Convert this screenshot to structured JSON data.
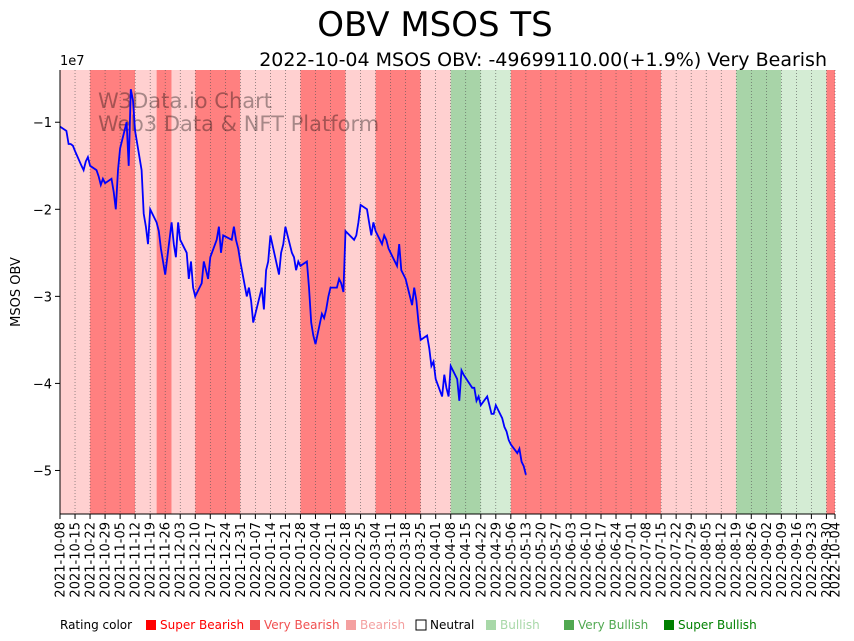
{
  "chart_data": {
    "type": "line",
    "title": "OBV MSOS TS",
    "subtitle": "2022-10-04 MSOS OBV: -49699110.00(+1.9%) Very Bearish",
    "ylabel": "MSOS OBV",
    "y_scale_label": "1e7",
    "ylim": [
      -5.5,
      -0.4
    ],
    "yticks": [
      -1,
      -2,
      -3,
      -4,
      -5
    ],
    "ytick_labels": [
      "−1",
      "−2",
      "−3",
      "−4",
      "−5"
    ],
    "x_start": "2021-10-08",
    "x_end": "2022-10-04",
    "xtick_labels": [
      "2021-10-08",
      "2021-10-15",
      "2021-10-22",
      "2021-10-29",
      "2021-11-05",
      "2021-11-12",
      "2021-11-19",
      "2021-11-26",
      "2021-12-03",
      "2021-12-10",
      "2021-12-17",
      "2021-12-24",
      "2021-12-31",
      "2022-01-07",
      "2022-01-14",
      "2022-01-21",
      "2022-01-28",
      "2022-02-04",
      "2022-02-11",
      "2022-02-18",
      "2022-02-25",
      "2022-03-04",
      "2022-03-11",
      "2022-03-18",
      "2022-03-25",
      "2022-04-01",
      "2022-04-08",
      "2022-04-15",
      "2022-04-22",
      "2022-04-29",
      "2022-05-06",
      "2022-05-13",
      "2022-05-20",
      "2022-05-27",
      "2022-06-03",
      "2022-06-10",
      "2022-06-17",
      "2022-06-24",
      "2022-07-01",
      "2022-07-08",
      "2022-07-15",
      "2022-07-22",
      "2022-07-29",
      "2022-08-05",
      "2022-08-12",
      "2022-08-19",
      "2022-08-26",
      "2022-09-02",
      "2022-09-09",
      "2022-09-16",
      "2022-09-23",
      "2022-09-30",
      "2022-10-04"
    ],
    "series": [
      {
        "name": "MSOS OBV (1e7)",
        "color": "#0000ff",
        "points": [
          [
            "2021-10-08",
            -1.05
          ],
          [
            "2021-10-11",
            -1.1
          ],
          [
            "2021-10-12",
            -1.25
          ],
          [
            "2021-10-13",
            -1.25
          ],
          [
            "2021-10-14",
            -1.27
          ],
          [
            "2021-10-15",
            -1.33
          ],
          [
            "2021-10-18",
            -1.5
          ],
          [
            "2021-10-19",
            -1.55
          ],
          [
            "2021-10-20",
            -1.45
          ],
          [
            "2021-10-21",
            -1.4
          ],
          [
            "2021-10-22",
            -1.5
          ],
          [
            "2021-10-25",
            -1.55
          ],
          [
            "2021-10-26",
            -1.62
          ],
          [
            "2021-10-27",
            -1.72
          ],
          [
            "2021-10-28",
            -1.65
          ],
          [
            "2021-10-29",
            -1.7
          ],
          [
            "2021-11-01",
            -1.65
          ],
          [
            "2021-11-02",
            -1.8
          ],
          [
            "2021-11-03",
            -2.0
          ],
          [
            "2021-11-04",
            -1.55
          ],
          [
            "2021-11-05",
            -1.3
          ],
          [
            "2021-11-08",
            -1.0
          ],
          [
            "2021-11-09",
            -1.5
          ],
          [
            "2021-11-10",
            -0.62
          ],
          [
            "2021-11-11",
            -0.75
          ],
          [
            "2021-11-12",
            -1.1
          ],
          [
            "2021-11-15",
            -1.55
          ],
          [
            "2021-11-16",
            -2.05
          ],
          [
            "2021-11-17",
            -2.2
          ],
          [
            "2021-11-18",
            -2.4
          ],
          [
            "2021-11-19",
            -2.0
          ],
          [
            "2021-11-22",
            -2.15
          ],
          [
            "2021-11-23",
            -2.25
          ],
          [
            "2021-11-24",
            -2.45
          ],
          [
            "2021-11-26",
            -2.75
          ],
          [
            "2021-11-29",
            -2.15
          ],
          [
            "2021-11-30",
            -2.4
          ],
          [
            "2021-12-01",
            -2.55
          ],
          [
            "2021-12-02",
            -2.15
          ],
          [
            "2021-12-03",
            -2.35
          ],
          [
            "2021-12-06",
            -2.5
          ],
          [
            "2021-12-07",
            -2.8
          ],
          [
            "2021-12-08",
            -2.6
          ],
          [
            "2021-12-09",
            -2.9
          ],
          [
            "2021-12-10",
            -3.0
          ],
          [
            "2021-12-13",
            -2.85
          ],
          [
            "2021-12-14",
            -2.6
          ],
          [
            "2021-12-15",
            -2.7
          ],
          [
            "2021-12-16",
            -2.8
          ],
          [
            "2021-12-17",
            -2.55
          ],
          [
            "2021-12-20",
            -2.35
          ],
          [
            "2021-12-21",
            -2.2
          ],
          [
            "2021-12-22",
            -2.5
          ],
          [
            "2021-12-23",
            -2.3
          ],
          [
            "2021-12-27",
            -2.35
          ],
          [
            "2021-12-28",
            -2.2
          ],
          [
            "2021-12-29",
            -2.35
          ],
          [
            "2021-12-30",
            -2.45
          ],
          [
            "2021-12-31",
            -2.6
          ],
          [
            "2022-01-03",
            -3.0
          ],
          [
            "2022-01-04",
            -2.9
          ],
          [
            "2022-01-05",
            -3.05
          ],
          [
            "2022-01-06",
            -3.3
          ],
          [
            "2022-01-07",
            -3.2
          ],
          [
            "2022-01-10",
            -2.9
          ],
          [
            "2022-01-11",
            -3.15
          ],
          [
            "2022-01-12",
            -2.7
          ],
          [
            "2022-01-13",
            -2.6
          ],
          [
            "2022-01-14",
            -2.3
          ],
          [
            "2022-01-18",
            -2.75
          ],
          [
            "2022-01-19",
            -2.5
          ],
          [
            "2022-01-20",
            -2.4
          ],
          [
            "2022-01-21",
            -2.2
          ],
          [
            "2022-01-24",
            -2.5
          ],
          [
            "2022-01-25",
            -2.55
          ],
          [
            "2022-01-26",
            -2.7
          ],
          [
            "2022-01-27",
            -2.6
          ],
          [
            "2022-01-28",
            -2.65
          ],
          [
            "2022-01-31",
            -2.6
          ],
          [
            "2022-02-01",
            -2.9
          ],
          [
            "2022-02-02",
            -3.3
          ],
          [
            "2022-02-03",
            -3.45
          ],
          [
            "2022-02-04",
            -3.55
          ],
          [
            "2022-02-07",
            -3.2
          ],
          [
            "2022-02-08",
            -3.25
          ],
          [
            "2022-02-09",
            -3.15
          ],
          [
            "2022-02-10",
            -3.0
          ],
          [
            "2022-02-11",
            -2.9
          ],
          [
            "2022-02-14",
            -2.9
          ],
          [
            "2022-02-15",
            -2.8
          ],
          [
            "2022-02-16",
            -2.85
          ],
          [
            "2022-02-17",
            -2.95
          ],
          [
            "2022-02-18",
            -2.25
          ],
          [
            "2022-02-22",
            -2.35
          ],
          [
            "2022-02-23",
            -2.3
          ],
          [
            "2022-02-24",
            -2.15
          ],
          [
            "2022-02-25",
            -1.95
          ],
          [
            "2022-02-28",
            -2.0
          ],
          [
            "2022-03-01",
            -2.15
          ],
          [
            "2022-03-02",
            -2.3
          ],
          [
            "2022-03-03",
            -2.15
          ],
          [
            "2022-03-04",
            -2.25
          ],
          [
            "2022-03-07",
            -2.4
          ],
          [
            "2022-03-08",
            -2.3
          ],
          [
            "2022-03-09",
            -2.35
          ],
          [
            "2022-03-10",
            -2.45
          ],
          [
            "2022-03-11",
            -2.5
          ],
          [
            "2022-03-14",
            -2.65
          ],
          [
            "2022-03-15",
            -2.4
          ],
          [
            "2022-03-16",
            -2.7
          ],
          [
            "2022-03-17",
            -2.75
          ],
          [
            "2022-03-18",
            -2.8
          ],
          [
            "2022-03-21",
            -3.1
          ],
          [
            "2022-03-22",
            -2.9
          ],
          [
            "2022-03-23",
            -3.05
          ],
          [
            "2022-03-24",
            -3.3
          ],
          [
            "2022-03-25",
            -3.5
          ],
          [
            "2022-03-28",
            -3.45
          ],
          [
            "2022-03-29",
            -3.6
          ],
          [
            "2022-03-30",
            -3.8
          ],
          [
            "2022-03-31",
            -3.75
          ],
          [
            "2022-04-01",
            -3.95
          ],
          [
            "2022-04-04",
            -4.15
          ],
          [
            "2022-04-05",
            -3.9
          ],
          [
            "2022-04-06",
            -4.05
          ],
          [
            "2022-04-07",
            -4.15
          ],
          [
            "2022-04-08",
            -3.8
          ],
          [
            "2022-04-11",
            -3.95
          ],
          [
            "2022-04-12",
            -4.2
          ],
          [
            "2022-04-13",
            -3.85
          ],
          [
            "2022-04-14",
            -3.9
          ],
          [
            "2022-04-18",
            -4.05
          ],
          [
            "2022-04-19",
            -4.05
          ],
          [
            "2022-04-20",
            -4.2
          ],
          [
            "2022-04-21",
            -4.15
          ],
          [
            "2022-04-22",
            -4.25
          ],
          [
            "2022-04-25",
            -4.15
          ],
          [
            "2022-04-26",
            -4.25
          ],
          [
            "2022-04-27",
            -4.35
          ],
          [
            "2022-04-28",
            -4.35
          ],
          [
            "2022-04-29",
            -4.25
          ],
          [
            "2022-05-02",
            -4.4
          ],
          [
            "2022-05-03",
            -4.5
          ],
          [
            "2022-05-04",
            -4.55
          ],
          [
            "2022-05-05",
            -4.65
          ],
          [
            "2022-05-06",
            -4.7
          ],
          [
            "2022-05-09",
            -4.8
          ],
          [
            "2022-05-10",
            -4.75
          ],
          [
            "2022-05-11",
            -4.9
          ],
          [
            "2022-05-12",
            -4.95
          ],
          [
            "2022-05-13",
            -5.05
          ]
        ]
      }
    ],
    "rating_bands": [
      {
        "start": "2021-10-08",
        "end": "2021-10-22",
        "rating": "Bearish"
      },
      {
        "start": "2021-10-22",
        "end": "2021-11-12",
        "rating": "Very Bearish"
      },
      {
        "start": "2021-11-12",
        "end": "2021-11-22",
        "rating": "Bearish"
      },
      {
        "start": "2021-11-22",
        "end": "2021-11-29",
        "rating": "Very Bearish"
      },
      {
        "start": "2021-11-29",
        "end": "2021-12-10",
        "rating": "Bearish"
      },
      {
        "start": "2021-12-10",
        "end": "2021-12-31",
        "rating": "Very Bearish"
      },
      {
        "start": "2021-12-31",
        "end": "2022-01-28",
        "rating": "Bearish"
      },
      {
        "start": "2022-01-28",
        "end": "2022-02-18",
        "rating": "Very Bearish"
      },
      {
        "start": "2022-02-18",
        "end": "2022-03-04",
        "rating": "Bearish"
      },
      {
        "start": "2022-03-04",
        "end": "2022-03-25",
        "rating": "Very Bearish"
      },
      {
        "start": "2022-03-25",
        "end": "2022-04-08",
        "rating": "Bearish"
      },
      {
        "start": "2022-04-08",
        "end": "2022-04-22",
        "rating": "Very Bullish"
      },
      {
        "start": "2022-04-22",
        "end": "2022-05-06",
        "rating": "Bullish"
      },
      {
        "start": "2022-05-06",
        "end": "2022-07-15",
        "rating": "Very Bearish"
      },
      {
        "start": "2022-07-15",
        "end": "2022-08-19",
        "rating": "Bearish"
      },
      {
        "start": "2022-08-19",
        "end": "2022-09-09",
        "rating": "Very Bullish"
      },
      {
        "start": "2022-09-09",
        "end": "2022-09-30",
        "rating": "Bullish"
      },
      {
        "start": "2022-09-30",
        "end": "2022-10-04",
        "rating": "Very Bearish"
      }
    ],
    "legend": {
      "title": "Rating color",
      "items": [
        {
          "label": "Super Bearish",
          "color": "#ff0000"
        },
        {
          "label": "Very Bearish",
          "color": "#f05050"
        },
        {
          "label": "Bearish",
          "color": "#f4a0a0"
        },
        {
          "label": "Neutral",
          "color": "#000000"
        },
        {
          "label": "Bullish",
          "color": "#a8d8a8"
        },
        {
          "label": "Very Bullish",
          "color": "#50a850"
        },
        {
          "label": "Super Bullish",
          "color": "#008000"
        }
      ]
    },
    "band_colors": {
      "Super Bearish": "#ff4040",
      "Very Bearish": "#ff8080",
      "Bearish": "#ffd0d0",
      "Neutral": "#ffffff",
      "Bullish": "#d4ecd4",
      "Very Bullish": "#a8d4a8",
      "Super Bullish": "#70b870"
    },
    "line_color": "#0000ff"
  },
  "watermark": {
    "line1": "W3Data.io Chart",
    "line2": "Web3 Data & NFT Platform"
  }
}
